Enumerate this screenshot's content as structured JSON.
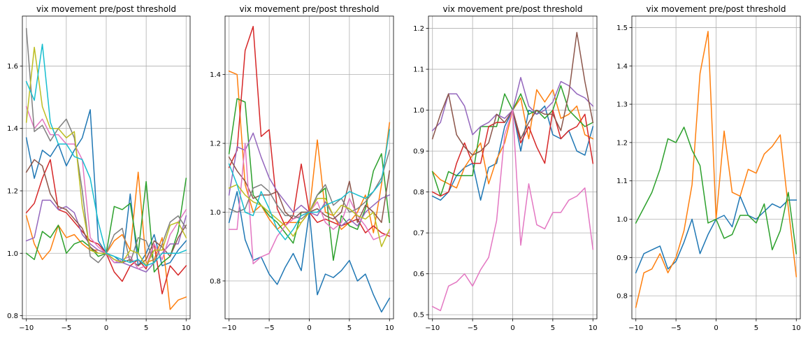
{
  "colors": [
    "#1f77b4",
    "#ff7f0e",
    "#2ca02c",
    "#d62728",
    "#9467bd",
    "#8c564b",
    "#e377c2",
    "#7f7f7f",
    "#bcbd22",
    "#17becf"
  ],
  "chart_data": [
    {
      "type": "line",
      "title": "vix movement pre/post threshold",
      "x": [
        -10,
        -9,
        -8,
        -7,
        -6,
        -5,
        -4,
        -3,
        -2,
        -1,
        0,
        1,
        2,
        3,
        4,
        5,
        6,
        7,
        8,
        9,
        10
      ],
      "xlim": [
        -10.5,
        10.5
      ],
      "ylim": [
        0.79,
        1.76
      ],
      "xticks": [
        -10,
        -5,
        0,
        5,
        10
      ],
      "yticks": [
        0.8,
        1.0,
        1.2,
        1.4,
        1.6
      ],
      "ytick_labels": [
        "0.8",
        "1.0",
        "1.2",
        "1.4",
        "1.6"
      ],
      "grid": true,
      "series": [
        {
          "values": [
            1.37,
            1.24,
            1.33,
            1.31,
            1.35,
            1.28,
            1.33,
            1.37,
            1.46,
            1.04,
            1.0,
            0.99,
            0.97,
            1.19,
            0.96,
            1.0,
            1.06,
            0.96,
            0.97,
            1.01,
            1.04
          ]
        },
        {
          "values": [
            1.12,
            1.03,
            0.98,
            1.01,
            1.09,
            1.05,
            1.06,
            1.03,
            1.01,
            1.01,
            1.0,
            1.04,
            1.06,
            1.01,
            1.26,
            0.97,
            0.98,
            1.05,
            0.82,
            0.85,
            0.86
          ]
        },
        {
          "values": [
            1.0,
            0.98,
            1.07,
            1.05,
            1.09,
            1.0,
            1.03,
            1.04,
            1.02,
            0.99,
            1.0,
            1.15,
            1.14,
            1.16,
            1.0,
            1.23,
            0.94,
            0.97,
            0.99,
            1.07,
            1.24
          ]
        },
        {
          "values": [
            1.13,
            1.16,
            1.24,
            1.3,
            1.14,
            1.13,
            1.1,
            1.07,
            1.04,
            1.03,
            1.0,
            0.94,
            0.91,
            0.96,
            0.98,
            0.95,
            1.03,
            0.87,
            0.96,
            0.93,
            0.96
          ]
        },
        {
          "values": [
            1.04,
            1.05,
            1.17,
            1.17,
            1.14,
            1.15,
            1.13,
            1.06,
            1.03,
            1.01,
            1.0,
            0.97,
            0.97,
            0.96,
            0.95,
            0.94,
            0.97,
            1.0,
            1.03,
            1.03,
            1.12
          ]
        },
        {
          "values": [
            1.26,
            1.3,
            1.28,
            1.19,
            1.15,
            1.14,
            1.11,
            1.08,
            1.02,
            1.0,
            1.0,
            0.98,
            0.97,
            0.98,
            0.96,
            0.98,
            1.04,
            1.02,
            0.99,
            1.05,
            1.09
          ]
        },
        {
          "values": [
            1.47,
            1.4,
            1.43,
            1.38,
            1.38,
            1.35,
            1.35,
            1.3,
            1.05,
            1.02,
            1.0,
            0.97,
            0.98,
            0.99,
            0.95,
            0.96,
            1.03,
            0.98,
            1.06,
            1.1,
            1.14
          ]
        },
        {
          "values": [
            1.72,
            1.39,
            1.41,
            1.36,
            1.4,
            1.43,
            1.37,
            1.2,
            0.99,
            0.97,
            1.0,
            1.06,
            1.08,
            0.97,
            1.05,
            1.04,
            0.97,
            1.03,
            1.1,
            1.12,
            1.08
          ]
        },
        {
          "values": [
            1.42,
            1.66,
            1.47,
            1.4,
            1.4,
            1.37,
            1.39,
            1.15,
            1.01,
            1.0,
            1.0,
            0.98,
            0.97,
            1.01,
            1.0,
            0.96,
            1.01,
            1.01,
            1.09,
            1.1,
            1.05
          ]
        },
        {
          "values": [
            1.55,
            1.49,
            1.67,
            1.42,
            1.35,
            1.35,
            1.31,
            1.3,
            1.24,
            1.1,
            1.0,
            0.99,
            0.98,
            0.97,
            0.98,
            0.96,
            0.97,
            1.0,
            1.0,
            1.0,
            1.01
          ]
        }
      ]
    },
    {
      "type": "line",
      "title": "vix movement pre/post threshold",
      "x": [
        -10,
        -9,
        -8,
        -7,
        -6,
        -5,
        -4,
        -3,
        -2,
        -1,
        0,
        1,
        2,
        3,
        4,
        5,
        6,
        7,
        8,
        9,
        10
      ],
      "xlim": [
        -10.5,
        10.5
      ],
      "ylim": [
        0.69,
        1.57
      ],
      "xticks": [
        -10,
        -5,
        0,
        5,
        10
      ],
      "yticks": [
        0.8,
        1.0,
        1.2,
        1.4
      ],
      "ytick_labels": [
        "0.8",
        "1.0",
        "1.2",
        "1.4"
      ],
      "grid": true,
      "series": [
        {
          "values": [
            0.97,
            1.06,
            0.92,
            0.86,
            0.87,
            0.82,
            0.79,
            0.84,
            0.88,
            0.83,
            1.0,
            0.76,
            0.82,
            0.81,
            0.83,
            0.86,
            0.8,
            0.82,
            0.76,
            0.71,
            0.75
          ]
        },
        {
          "values": [
            1.41,
            1.4,
            1.08,
            1.0,
            1.02,
            0.98,
            0.95,
            0.97,
            0.97,
            0.97,
            1.0,
            1.21,
            1.0,
            0.99,
            0.95,
            0.97,
            1.0,
            1.05,
            0.94,
            1.08,
            1.26
          ]
        },
        {
          "values": [
            1.17,
            1.33,
            1.32,
            1.05,
            1.02,
            0.99,
            0.97,
            0.94,
            0.91,
            1.0,
            1.0,
            1.05,
            1.07,
            0.86,
            0.99,
            0.96,
            0.95,
            1.01,
            1.12,
            1.17,
            0.97
          ]
        },
        {
          "values": [
            1.13,
            1.18,
            1.47,
            1.54,
            1.22,
            1.24,
            1.01,
            0.96,
            0.99,
            1.14,
            1.0,
            0.97,
            0.98,
            0.97,
            0.96,
            0.97,
            0.98,
            0.94,
            0.96,
            0.94,
            0.93
          ]
        },
        {
          "values": [
            1.05,
            1.19,
            1.18,
            1.23,
            1.16,
            1.1,
            1.06,
            1.03,
            1.0,
            1.02,
            1.0,
            0.99,
            1.03,
            0.99,
            0.96,
            0.98,
            0.96,
            1.0,
            1.02,
            1.04,
            1.05
          ]
        },
        {
          "values": [
            1.16,
            1.12,
            1.09,
            1.04,
            1.05,
            1.05,
            1.06,
            1.0,
            0.98,
            1.0,
            1.0,
            1.01,
            0.99,
            0.98,
            1.0,
            1.09,
            0.97,
            1.02,
            1.0,
            0.97,
            1.12
          ]
        },
        {
          "values": [
            0.95,
            0.95,
            1.2,
            0.85,
            0.87,
            0.88,
            0.93,
            0.96,
            0.98,
            0.99,
            1.0,
            1.03,
            0.97,
            0.95,
            0.97,
            1.04,
            0.99,
            0.96,
            0.92,
            0.93,
            0.94
          ]
        },
        {
          "values": [
            1.01,
            1.0,
            1.01,
            1.07,
            1.08,
            1.06,
            1.02,
            0.99,
            0.99,
            0.98,
            1.0,
            1.05,
            1.08,
            1.02,
            1.04,
            1.0,
            1.01,
            1.03,
            1.06,
            1.1,
            1.18
          ]
        },
        {
          "values": [
            1.07,
            1.08,
            1.05,
            1.03,
            1.02,
            1.0,
            0.98,
            0.96,
            0.93,
            0.97,
            1.0,
            1.04,
            1.04,
            0.99,
            1.02,
            1.01,
            0.99,
            0.98,
            1.0,
            0.9,
            0.95
          ]
        },
        {
          "values": [
            1.14,
            1.08,
            1.0,
            0.99,
            1.06,
            1.01,
            0.95,
            0.92,
            0.95,
            0.99,
            1.0,
            1.0,
            1.02,
            1.03,
            1.04,
            1.06,
            1.05,
            1.04,
            1.06,
            1.09,
            1.24
          ]
        }
      ]
    },
    {
      "type": "line",
      "title": "vix movement pre/post threshold",
      "x": [
        -10,
        -9,
        -8,
        -7,
        -6,
        -5,
        -4,
        -3,
        -2,
        -1,
        0,
        1,
        2,
        3,
        4,
        5,
        6,
        7,
        8,
        9,
        10
      ],
      "xlim": [
        -10.5,
        10.5
      ],
      "ylim": [
        0.49,
        1.23
      ],
      "xticks": [
        -10,
        -5,
        0,
        5,
        10
      ],
      "yticks": [
        0.5,
        0.6,
        0.7,
        0.8,
        0.9,
        1.0,
        1.1,
        1.2
      ],
      "ytick_labels": [
        "0.5",
        "0.6",
        "0.7",
        "0.8",
        "0.9",
        "1.0",
        "1.1",
        "1.2"
      ],
      "grid": true,
      "series": [
        {
          "values": [
            0.79,
            0.78,
            0.8,
            0.84,
            0.86,
            0.87,
            0.78,
            0.86,
            0.87,
            0.96,
            1.0,
            0.9,
            1.0,
            0.99,
            1.01,
            0.94,
            0.93,
            0.95,
            0.9,
            0.89,
            0.96
          ]
        },
        {
          "values": [
            0.85,
            0.83,
            0.82,
            0.81,
            0.86,
            0.89,
            0.92,
            0.82,
            0.88,
            0.92,
            1.0,
            1.03,
            0.93,
            1.05,
            1.02,
            1.05,
            0.98,
            0.99,
            1.01,
            0.94,
            0.93
          ]
        },
        {
          "values": [
            0.85,
            0.79,
            0.85,
            0.84,
            0.84,
            0.84,
            0.96,
            0.96,
            0.96,
            1.04,
            1.0,
            1.04,
            0.99,
            1.0,
            0.98,
            1.0,
            1.06,
            1.0,
            0.98,
            0.96,
            0.97
          ]
        },
        {
          "values": [
            0.8,
            0.79,
            0.8,
            0.87,
            0.92,
            0.87,
            0.87,
            0.96,
            0.97,
            0.97,
            1.0,
            0.92,
            0.96,
            0.91,
            0.87,
            1.0,
            0.93,
            0.95,
            0.96,
            0.99,
            0.87
          ]
        },
        {
          "values": [
            0.95,
            0.97,
            1.04,
            1.04,
            1.01,
            0.94,
            0.96,
            0.97,
            0.99,
            0.98,
            1.0,
            1.08,
            1.01,
            0.99,
            1.0,
            1.02,
            1.07,
            1.06,
            1.04,
            1.03,
            1.01
          ]
        },
        {
          "values": [
            0.93,
            0.99,
            1.04,
            0.94,
            0.91,
            0.89,
            0.9,
            0.92,
            0.99,
            0.97,
            1.0,
            0.93,
            0.97,
            1.0,
            0.99,
            0.99,
            0.95,
            1.04,
            1.19,
            1.07,
            0.97
          ]
        },
        {
          "values": [
            0.52,
            0.51,
            0.57,
            0.58,
            0.6,
            0.57,
            0.61,
            0.64,
            0.73,
            0.94,
            1.0,
            0.67,
            0.82,
            0.72,
            0.71,
            0.75,
            0.75,
            0.78,
            0.79,
            0.81,
            0.66
          ]
        }
      ]
    },
    {
      "type": "line",
      "title": "vix movement pre/post threshold",
      "x": [
        -10,
        -9,
        -8,
        -7,
        -6,
        -5,
        -4,
        -3,
        -2,
        -1,
        0,
        1,
        2,
        3,
        4,
        5,
        6,
        7,
        8,
        9,
        10
      ],
      "xlim": [
        -10.5,
        10.5
      ],
      "ylim": [
        0.74,
        1.53
      ],
      "xticks": [
        -10,
        -5,
        0,
        5,
        10
      ],
      "yticks": [
        0.8,
        0.9,
        1.0,
        1.1,
        1.2,
        1.3,
        1.4,
        1.5
      ],
      "ytick_labels": [
        "0.8",
        "0.9",
        "1.0",
        "1.1",
        "1.2",
        "1.3",
        "1.4",
        "1.5"
      ],
      "grid": true,
      "series": [
        {
          "values": [
            0.86,
            0.91,
            0.92,
            0.93,
            0.87,
            0.89,
            0.94,
            1.0,
            0.91,
            0.96,
            1.0,
            1.01,
            0.98,
            1.06,
            1.01,
            1.0,
            1.02,
            1.04,
            1.03,
            1.05,
            1.05
          ]
        },
        {
          "values": [
            0.77,
            0.86,
            0.87,
            0.91,
            0.86,
            0.9,
            0.97,
            1.09,
            1.38,
            1.49,
            1.0,
            1.23,
            1.07,
            1.06,
            1.13,
            1.12,
            1.17,
            1.19,
            1.22,
            1.03,
            0.85
          ]
        },
        {
          "values": [
            0.99,
            1.03,
            1.07,
            1.13,
            1.21,
            1.2,
            1.24,
            1.18,
            1.14,
            0.99,
            1.0,
            0.95,
            0.96,
            1.01,
            1.01,
            0.99,
            1.04,
            0.92,
            0.97,
            1.07,
            0.91
          ]
        }
      ]
    }
  ]
}
